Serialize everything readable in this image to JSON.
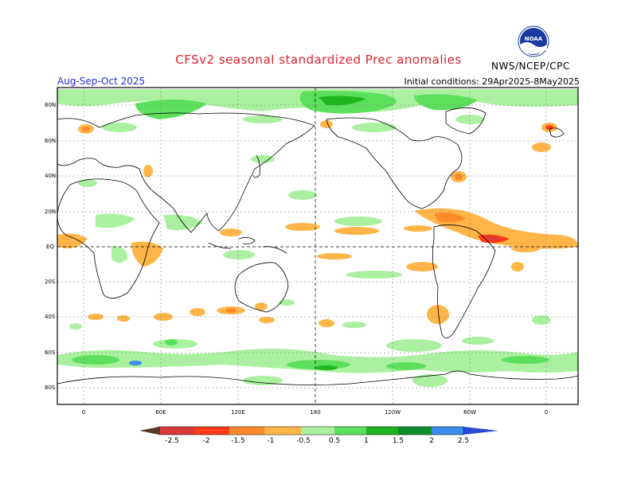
{
  "header": {
    "title": "CFSv2 seasonal standardized Prec anomalies",
    "season": "Aug-Sep-Oct 2025",
    "initial_conditions": "Initial conditions: 29Apr2025-8May2025",
    "org": "NWS/NCEP/CPC",
    "logo_text": "NOAA"
  },
  "axes": {
    "lat_ticks": [
      "80N",
      "60N",
      "40N",
      "20N",
      "EQ",
      "20S",
      "40S",
      "60S",
      "80S"
    ],
    "lon_ticks": [
      "0",
      "60E",
      "120E",
      "180",
      "120W",
      "60W",
      "0"
    ]
  },
  "colorbar": {
    "labels": [
      "-2.5",
      "-2",
      "-1.5",
      "-1",
      "-0.5",
      "0.5",
      "1",
      "1.5",
      "2",
      "2.5"
    ],
    "colors": {
      "lt_neg25": "#5c3a2e",
      "neg2": "#d93a3a",
      "neg15": "#ff3a17",
      "neg1": "#ff8a2a",
      "neg05": "#ffb547",
      "neutral": "#ffffff",
      "pos05": "#aaf0a0",
      "pos1": "#5ce05c",
      "pos15": "#1eb41e",
      "pos2": "#0a8f2a",
      "pos25": "#3a8cf0",
      "gt_pos25": "#2a4ad8"
    }
  }
}
